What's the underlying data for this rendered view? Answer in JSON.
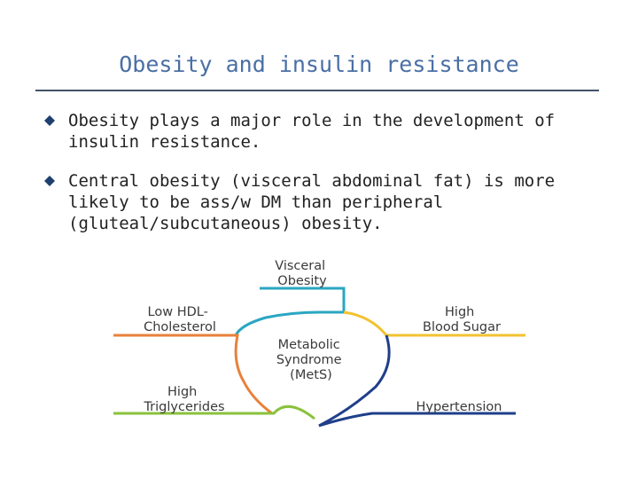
{
  "slide": {
    "title": "Obesity and insulin resistance",
    "bullets": [
      "Obesity plays a major role in the development of insulin resistance.",
      "Central obesity (visceral abdominal fat) is more likely to be ass/w DM than peripheral (gluteal/subcutaneous) obesity."
    ]
  },
  "diagram": {
    "center": [
      "Metabolic",
      "Syndrome",
      "(MetS)"
    ],
    "top": [
      "Visceral",
      "Obesity"
    ],
    "left_top": [
      "Low HDL-",
      "Cholesterol"
    ],
    "right_top": [
      "High",
      "Blood Sugar"
    ],
    "left_bottom": [
      "High",
      "Triglycerides"
    ],
    "right_bottom": [
      "Hypertension"
    ],
    "colors": {
      "visceral": "#2aa6c2",
      "hdl": "#e8813a",
      "blood_sugar": "#f2c230",
      "triglycerides": "#8ac23c",
      "hypertension": "#1f3f8a",
      "title": "#4a6fa5",
      "bullet": "#1f3f6e"
    }
  }
}
